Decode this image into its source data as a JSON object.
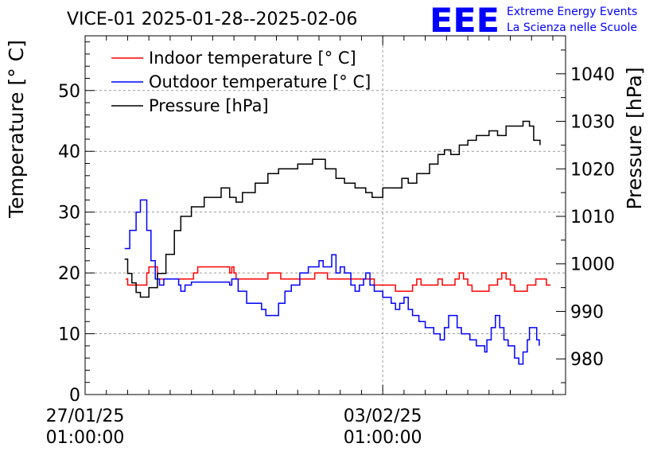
{
  "header": {
    "title": "VICE-01 2025-01-28--2025-02-06",
    "logo_text": "EEE",
    "logo_line1": "Extreme Energy Events",
    "logo_line2": "La Scienza nelle Scuole"
  },
  "colors": {
    "indoor": "#ff0000",
    "outdoor": "#0000ff",
    "pressure": "#000000",
    "logo": "#0000ff",
    "grid": "#9a9a9a"
  },
  "chart_data": {
    "type": "line",
    "title": "VICE-01 2025-01-28--2025-02-06",
    "xlabel": "",
    "ylabel_left": "Temperature [° C]",
    "ylabel_right": "Pressure [hPa]",
    "x_unit": "days since 2025-01-27 01:00",
    "xlim": [
      0,
      11.3
    ],
    "ylim_left": [
      0,
      59
    ],
    "ylim_right": [
      972.5,
      1048
    ],
    "x_tick_labels": [
      {
        "x": 0,
        "line1": "27/01/25",
        "line2": "01:00:00"
      },
      {
        "x": 7,
        "line1": "03/02/25",
        "line2": "01:00:00"
      }
    ],
    "y_ticks_left": [
      0,
      10,
      20,
      30,
      40,
      50
    ],
    "y_ticks_right": [
      980,
      990,
      1000,
      1010,
      1020,
      1030,
      1040
    ],
    "grid": true,
    "legend_position": "top-left",
    "series": [
      {
        "name": "Indoor temperature [° C]",
        "axis": "left",
        "points": [
          [
            0.95,
            19
          ],
          [
            1.0,
            18
          ],
          [
            1.25,
            18
          ],
          [
            1.45,
            20
          ],
          [
            1.5,
            21
          ],
          [
            1.6,
            21
          ],
          [
            1.7,
            19
          ],
          [
            2.0,
            19
          ],
          [
            2.4,
            19
          ],
          [
            2.55,
            20
          ],
          [
            2.65,
            21
          ],
          [
            3.4,
            20
          ],
          [
            3.45,
            21
          ],
          [
            3.5,
            20
          ],
          [
            3.55,
            19
          ],
          [
            4.2,
            19
          ],
          [
            4.3,
            20
          ],
          [
            4.5,
            20
          ],
          [
            4.6,
            19
          ],
          [
            5.3,
            19
          ],
          [
            5.4,
            20
          ],
          [
            5.6,
            20
          ],
          [
            5.7,
            19
          ],
          [
            6.7,
            19
          ],
          [
            6.8,
            18
          ],
          [
            7.2,
            18
          ],
          [
            7.3,
            17
          ],
          [
            7.6,
            17
          ],
          [
            7.7,
            18
          ],
          [
            7.8,
            19
          ],
          [
            7.9,
            18
          ],
          [
            8.2,
            18
          ],
          [
            8.3,
            19
          ],
          [
            8.4,
            18
          ],
          [
            8.6,
            18
          ],
          [
            8.7,
            19
          ],
          [
            8.8,
            20
          ],
          [
            8.9,
            19
          ],
          [
            9.0,
            18
          ],
          [
            9.1,
            17
          ],
          [
            9.35,
            17
          ],
          [
            9.5,
            18
          ],
          [
            9.7,
            19
          ],
          [
            9.8,
            20
          ],
          [
            9.9,
            19
          ],
          [
            10.0,
            18
          ],
          [
            10.1,
            17
          ],
          [
            10.3,
            17
          ],
          [
            10.4,
            18
          ],
          [
            10.5,
            18
          ],
          [
            10.6,
            19
          ],
          [
            10.8,
            19
          ],
          [
            10.85,
            18
          ],
          [
            10.95,
            18
          ]
        ]
      },
      {
        "name": "Outdoor temperature [° C]",
        "axis": "left",
        "points": [
          [
            0.93,
            24
          ],
          [
            1.05,
            27
          ],
          [
            1.2,
            30
          ],
          [
            1.3,
            32
          ],
          [
            1.38,
            32
          ],
          [
            1.45,
            27
          ],
          [
            1.55,
            22
          ],
          [
            1.65,
            19
          ],
          [
            1.75,
            18
          ],
          [
            1.85,
            19
          ],
          [
            2.05,
            19
          ],
          [
            2.2,
            18
          ],
          [
            2.25,
            17
          ],
          [
            2.35,
            18
          ],
          [
            2.5,
            18.5
          ],
          [
            3.4,
            18
          ],
          [
            3.45,
            19
          ],
          [
            3.6,
            17
          ],
          [
            3.8,
            15
          ],
          [
            4.0,
            15
          ],
          [
            4.15,
            14
          ],
          [
            4.25,
            13
          ],
          [
            4.4,
            13
          ],
          [
            4.55,
            15
          ],
          [
            4.7,
            17
          ],
          [
            4.85,
            18
          ],
          [
            5.05,
            20
          ],
          [
            5.25,
            21
          ],
          [
            5.4,
            21
          ],
          [
            5.5,
            22
          ],
          [
            5.6,
            21
          ],
          [
            5.7,
            21
          ],
          [
            5.8,
            23
          ],
          [
            5.9,
            20
          ],
          [
            6.0,
            21
          ],
          [
            6.1,
            20
          ],
          [
            6.25,
            18
          ],
          [
            6.35,
            17
          ],
          [
            6.45,
            18
          ],
          [
            6.55,
            19
          ],
          [
            6.6,
            20
          ],
          [
            6.7,
            18
          ],
          [
            6.8,
            17
          ],
          [
            7.0,
            16
          ],
          [
            7.2,
            15
          ],
          [
            7.3,
            14
          ],
          [
            7.4,
            15
          ],
          [
            7.5,
            16
          ],
          [
            7.6,
            14
          ],
          [
            7.7,
            13
          ],
          [
            7.85,
            12
          ],
          [
            8.0,
            11
          ],
          [
            8.1,
            11
          ],
          [
            8.2,
            10
          ],
          [
            8.35,
            9
          ],
          [
            8.45,
            11
          ],
          [
            8.55,
            13
          ],
          [
            8.65,
            13
          ],
          [
            8.75,
            11
          ],
          [
            8.85,
            10
          ],
          [
            9.05,
            9
          ],
          [
            9.2,
            8
          ],
          [
            9.35,
            8
          ],
          [
            9.4,
            7
          ],
          [
            9.45,
            9
          ],
          [
            9.55,
            11
          ],
          [
            9.65,
            13
          ],
          [
            9.75,
            11
          ],
          [
            9.85,
            9
          ],
          [
            9.95,
            8
          ],
          [
            10.1,
            6
          ],
          [
            10.2,
            5
          ],
          [
            10.3,
            7
          ],
          [
            10.4,
            9
          ],
          [
            10.45,
            11
          ],
          [
            10.55,
            11
          ],
          [
            10.62,
            9
          ],
          [
            10.68,
            8
          ]
        ]
      },
      {
        "name": "Pressure [hPa]",
        "axis": "right",
        "points": [
          [
            0.93,
            1001
          ],
          [
            1.0,
            998
          ],
          [
            1.1,
            996
          ],
          [
            1.2,
            994
          ],
          [
            1.3,
            993
          ],
          [
            1.4,
            993
          ],
          [
            1.5,
            995
          ],
          [
            1.7,
            998
          ],
          [
            1.9,
            1002
          ],
          [
            2.1,
            1007
          ],
          [
            2.25,
            1010
          ],
          [
            2.5,
            1012
          ],
          [
            2.8,
            1014
          ],
          [
            3.2,
            1016
          ],
          [
            3.4,
            1014
          ],
          [
            3.55,
            1013
          ],
          [
            3.7,
            1015
          ],
          [
            4.0,
            1017
          ],
          [
            4.3,
            1019
          ],
          [
            4.55,
            1020
          ],
          [
            5.0,
            1021
          ],
          [
            5.2,
            1021
          ],
          [
            5.35,
            1022
          ],
          [
            5.45,
            1022
          ],
          [
            5.65,
            1020
          ],
          [
            5.9,
            1018
          ],
          [
            6.1,
            1017
          ],
          [
            6.35,
            1016
          ],
          [
            6.6,
            1015
          ],
          [
            6.75,
            1014
          ],
          [
            6.85,
            1014
          ],
          [
            7.0,
            1016
          ],
          [
            7.25,
            1016
          ],
          [
            7.45,
            1018
          ],
          [
            7.6,
            1017
          ],
          [
            7.8,
            1019
          ],
          [
            8.1,
            1021
          ],
          [
            8.3,
            1023
          ],
          [
            8.45,
            1024
          ],
          [
            8.6,
            1023
          ],
          [
            8.8,
            1025
          ],
          [
            9.0,
            1026
          ],
          [
            9.2,
            1027
          ],
          [
            9.5,
            1028
          ],
          [
            9.7,
            1027
          ],
          [
            9.9,
            1029
          ],
          [
            10.1,
            1029
          ],
          [
            10.3,
            1030
          ],
          [
            10.45,
            1029
          ],
          [
            10.55,
            1026
          ],
          [
            10.7,
            1025
          ]
        ]
      }
    ]
  }
}
